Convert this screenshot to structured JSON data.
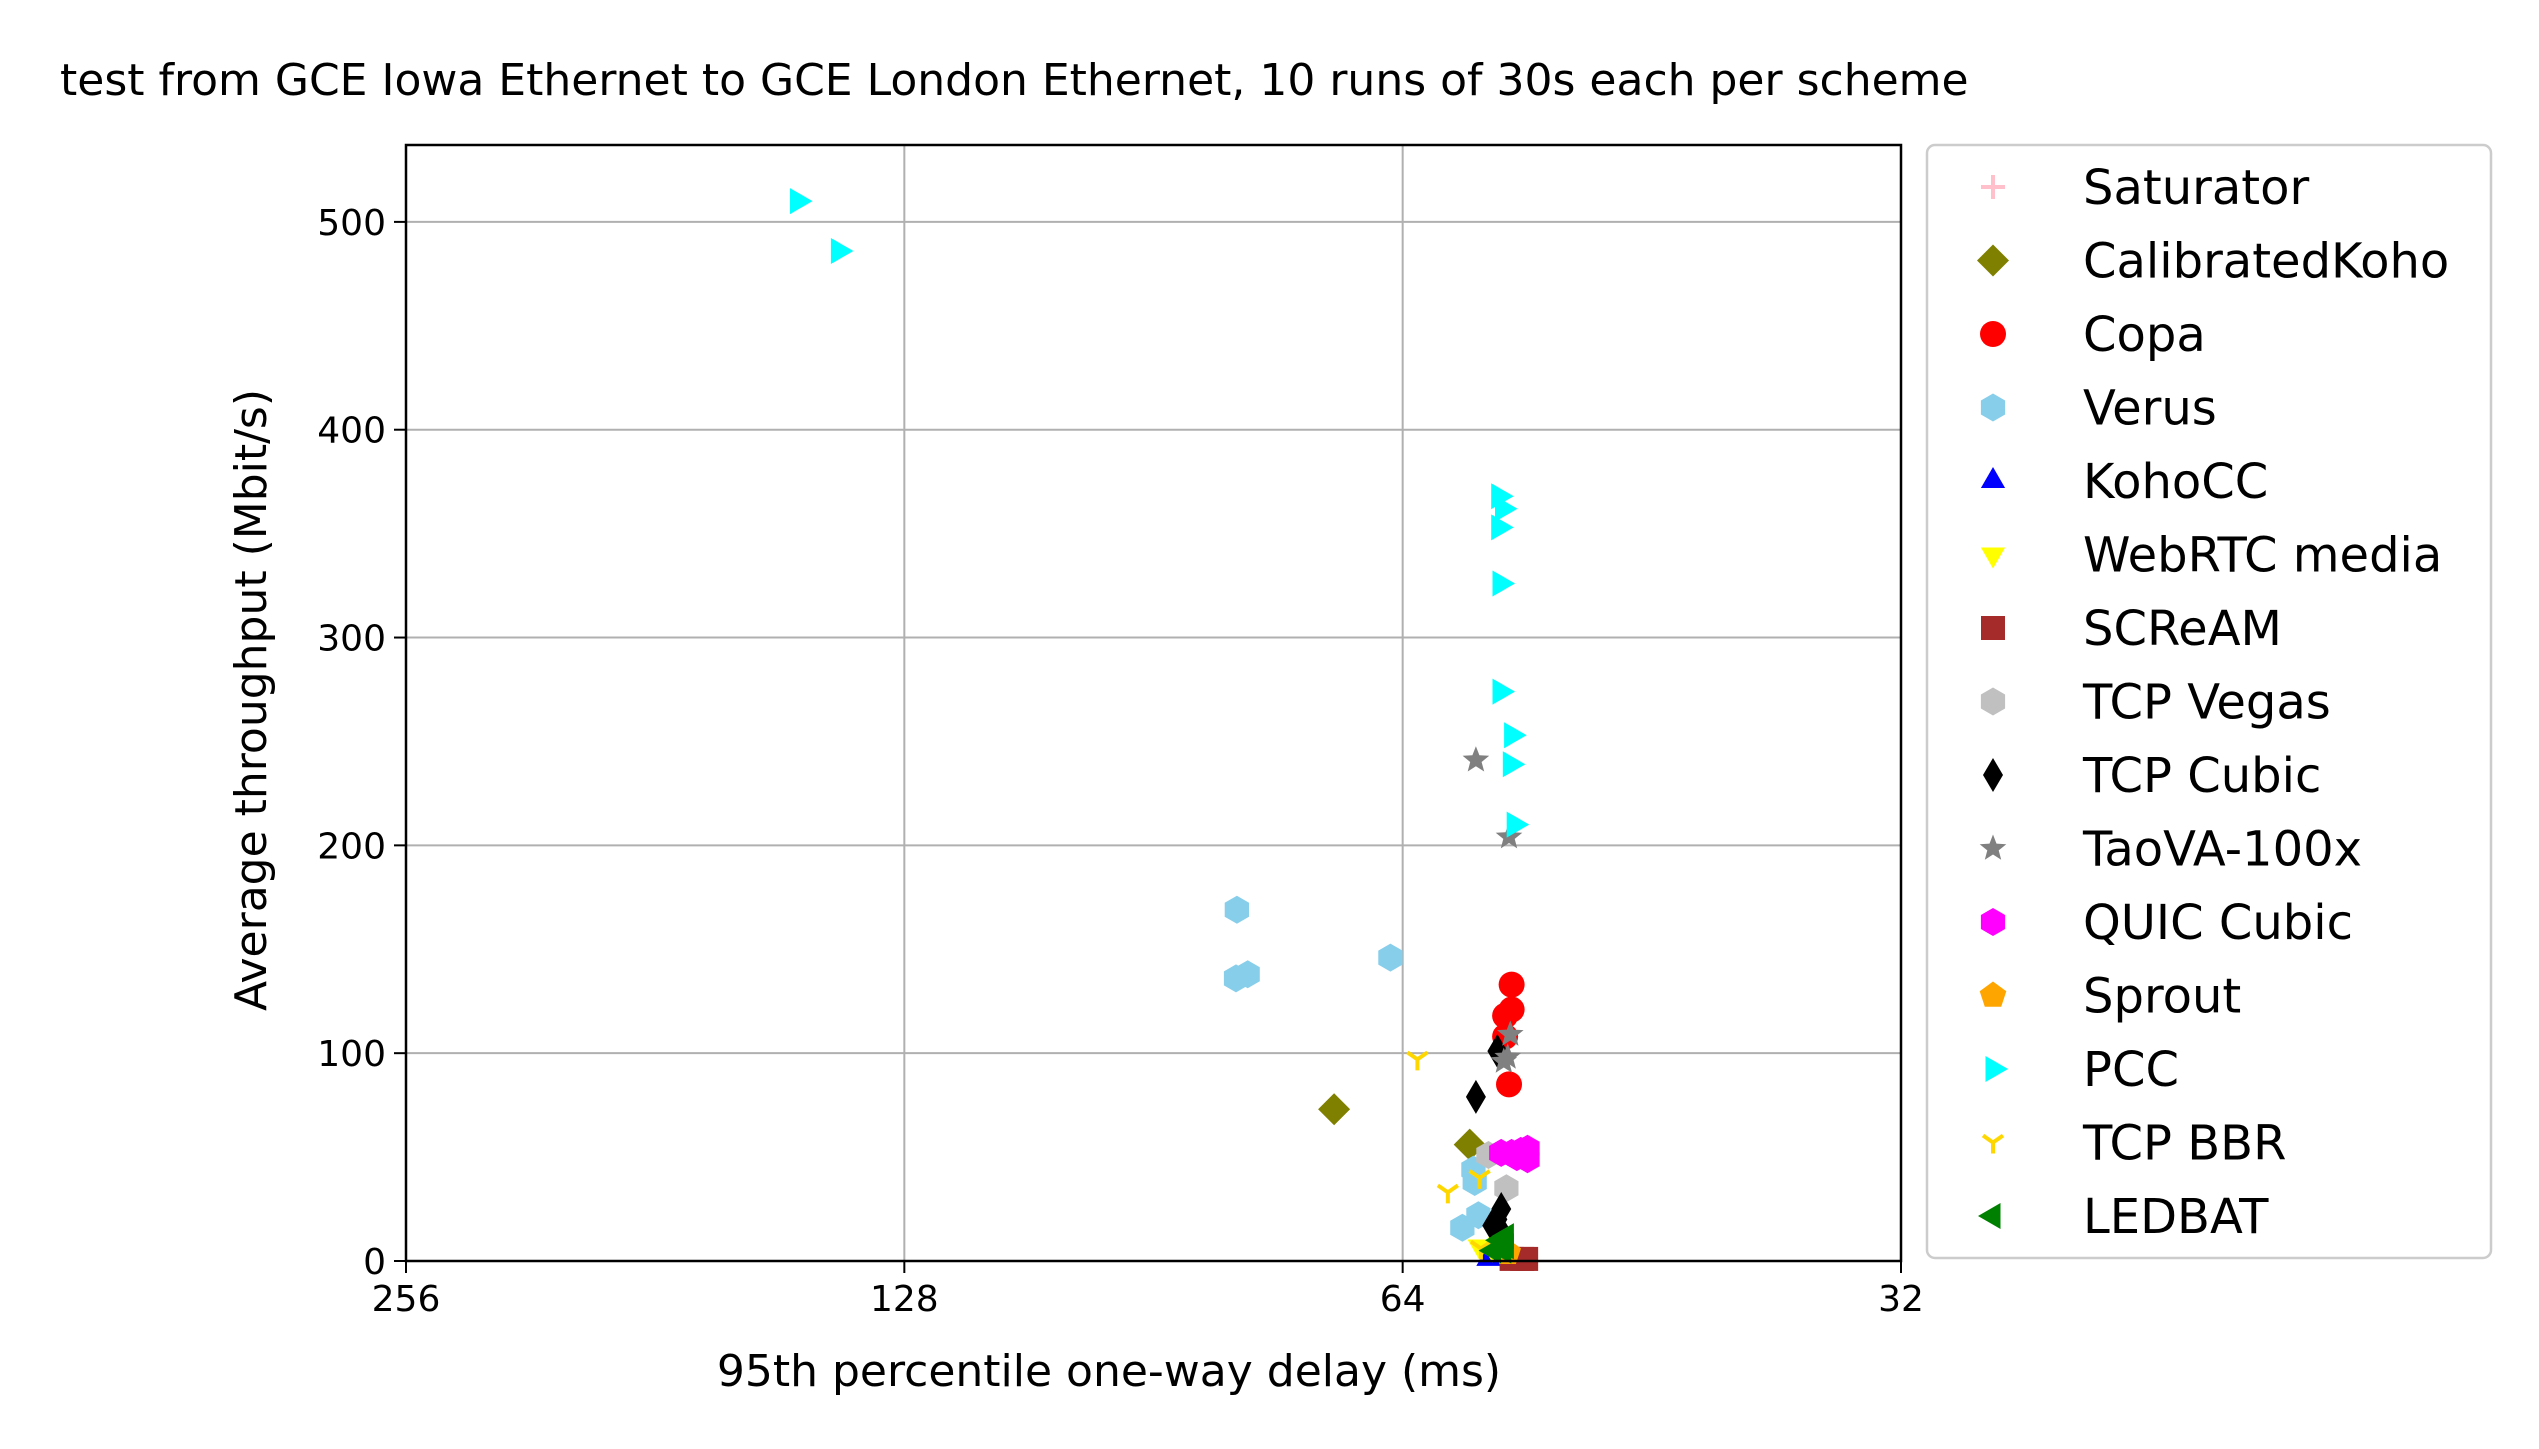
{
  "chart_data": {
    "type": "scatter",
    "title": "test from GCE Iowa Ethernet to GCE London Ethernet, 10 runs of 30s each per scheme",
    "xlabel": "95th percentile one-way delay (ms)",
    "ylabel": "Average throughput (Mbit/s)",
    "x_scale": "log2",
    "x_inverted": true,
    "xlim": [
      256,
      32
    ],
    "ylim": [
      0,
      537
    ],
    "x_ticks": [
      256,
      128,
      64,
      32
    ],
    "x_tick_labels": [
      "256",
      "128",
      "64",
      "32"
    ],
    "y_ticks": [
      0,
      100,
      200,
      300,
      400,
      500
    ],
    "y_tick_labels": [
      "0",
      "100",
      "200",
      "300",
      "400",
      "500"
    ],
    "grid": true,
    "legend_location": "outside-right",
    "series": [
      {
        "name": "Saturator",
        "marker": "plus",
        "color": "#ffc0cb",
        "points": []
      },
      {
        "name": "CalibratedKoho",
        "marker": "diamond",
        "color": "#808000",
        "points": [
          [
            70.4,
            73
          ],
          [
            58.3,
            56
          ]
        ]
      },
      {
        "name": "Copa",
        "marker": "circle",
        "color": "#ff0000",
        "points": [
          [
            55.0,
            133
          ],
          [
            55.5,
            118
          ],
          [
            55.0,
            121
          ],
          [
            55.5,
            108
          ],
          [
            55.2,
            85
          ]
        ]
      },
      {
        "name": "Verus",
        "marker": "hexagon",
        "color": "#87ceeb",
        "points": [
          [
            80.6,
            169
          ],
          [
            80.7,
            136
          ],
          [
            79.4,
            138
          ],
          [
            65.1,
            146
          ],
          [
            58.0,
            44
          ],
          [
            57.9,
            38
          ],
          [
            57.6,
            22
          ],
          [
            58.9,
            16
          ]
        ]
      },
      {
        "name": "KohoCC",
        "marker": "triangle-up",
        "color": "#0000ff",
        "points": [
          [
            56.8,
            1
          ],
          [
            56.2,
            2
          ]
        ]
      },
      {
        "name": "WebRTC media",
        "marker": "triangle-down",
        "color": "#ffff00",
        "points": [
          [
            57.5,
            7
          ],
          [
            56.5,
            6
          ],
          [
            55.9,
            8
          ]
        ]
      },
      {
        "name": "SCReAM",
        "marker": "square",
        "color": "#a52a2a",
        "points": [
          [
            55.0,
            1
          ],
          [
            54.2,
            1
          ],
          [
            53.9,
            1
          ]
        ]
      },
      {
        "name": "TCP Vegas",
        "marker": "hexagon",
        "color": "#c0c0c0",
        "points": [
          [
            56.8,
            51
          ],
          [
            55.4,
            35
          ]
        ]
      },
      {
        "name": "TCP Cubic",
        "marker": "thin-diamond",
        "color": "#000000",
        "points": [
          [
            56.1,
            101
          ],
          [
            57.8,
            79
          ],
          [
            55.8,
            25
          ],
          [
            56.1,
            20
          ],
          [
            56.5,
            17
          ],
          [
            55.7,
            13
          ]
        ]
      },
      {
        "name": "TaoVA-100x",
        "marker": "star",
        "color": "#808080",
        "points": [
          [
            57.8,
            241
          ],
          [
            55.2,
            204
          ],
          [
            55.1,
            109
          ],
          [
            55.6,
            96
          ],
          [
            55.3,
            98
          ]
        ]
      },
      {
        "name": "QUIC Cubic",
        "marker": "hexagon",
        "color": "#ff00ff",
        "points": [
          [
            55.8,
            52
          ],
          [
            55.0,
            52
          ],
          [
            54.6,
            50
          ],
          [
            54.3,
            53
          ],
          [
            53.8,
            54
          ],
          [
            53.8,
            49
          ]
        ]
      },
      {
        "name": "Sprout",
        "marker": "pentagon",
        "color": "#ffa500",
        "points": [
          [
            55.3,
            4
          ]
        ]
      },
      {
        "name": "PCC",
        "marker": "triangle-right",
        "color": "#00ffff",
        "points": [
          [
            148.5,
            510
          ],
          [
            140.3,
            486
          ],
          [
            56.0,
            368
          ],
          [
            55.7,
            362
          ],
          [
            56.0,
            353
          ],
          [
            55.9,
            326
          ],
          [
            55.9,
            274
          ],
          [
            55.0,
            253
          ],
          [
            55.1,
            239
          ],
          [
            54.8,
            210
          ]
        ]
      },
      {
        "name": "TCP BBR",
        "marker": "tri-down",
        "color": "#ffd700",
        "points": [
          [
            62.7,
            97
          ],
          [
            60.1,
            33
          ],
          [
            57.5,
            40
          ],
          [
            57.4,
            6
          ]
        ]
      },
      {
        "name": "LEDBAT",
        "marker": "triangle-left",
        "color": "#008000",
        "points": [
          [
            55.4,
            12
          ],
          [
            55.9,
            10
          ],
          [
            55.6,
            5
          ],
          [
            56.4,
            5
          ],
          [
            55.4,
            7
          ]
        ]
      }
    ]
  }
}
